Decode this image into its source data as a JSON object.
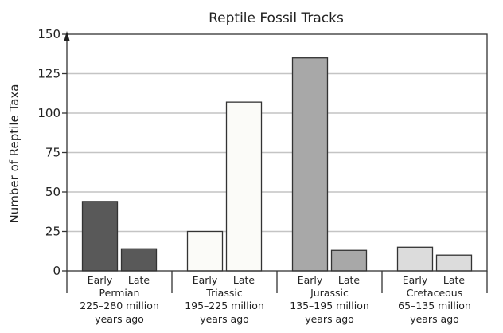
{
  "chart_data": {
    "type": "bar",
    "title": "Reptile Fossil Tracks",
    "xlabel": "",
    "ylabel": "Number of Reptile Taxa",
    "ylim": [
      0,
      150
    ],
    "yticks": [
      0,
      25,
      50,
      75,
      100,
      125,
      150
    ],
    "grid": true,
    "groups": [
      {
        "name": "Permian",
        "range": "225–280 million",
        "suffix": "years ago",
        "color": "#595959",
        "bars": [
          {
            "label": "Early",
            "value": 44
          },
          {
            "label": "Late",
            "value": 14
          }
        ]
      },
      {
        "name": "Triassic",
        "range": "195–225 million",
        "suffix": "years ago",
        "color": "#fbfbf8",
        "bars": [
          {
            "label": "Early",
            "value": 25
          },
          {
            "label": "Late",
            "value": 107
          }
        ]
      },
      {
        "name": "Jurassic",
        "range": "135–195 million",
        "suffix": "years ago",
        "color": "#a8a8a8",
        "bars": [
          {
            "label": "Early",
            "value": 135
          },
          {
            "label": "Late",
            "value": 13
          }
        ]
      },
      {
        "name": "Cretaceous",
        "range": "65–135 million",
        "suffix": "years ago",
        "color": "#dcdcdc",
        "bars": [
          {
            "label": "Early",
            "value": 15
          },
          {
            "label": "Late",
            "value": 10
          }
        ]
      }
    ]
  }
}
